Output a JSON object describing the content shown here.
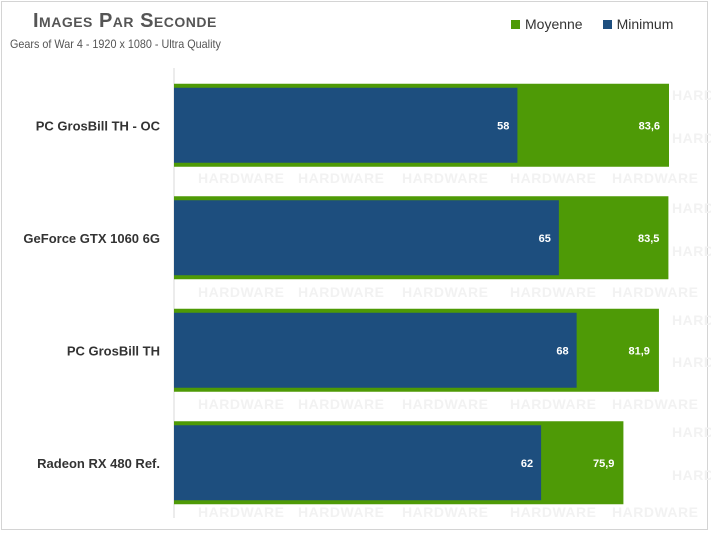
{
  "chart_data": {
    "type": "bar",
    "orientation": "horizontal",
    "title": "Images Par Seconde",
    "subtitle": "Gears of War 4 - 1920 x 1080 - Ultra Quality",
    "categories": [
      "PC GrosBill TH - OC",
      "GeForce GTX 1060 6G",
      "PC GrosBill TH",
      "Radeon RX 480 Ref."
    ],
    "series": [
      {
        "name": "Moyenne",
        "color": "#4e9a06",
        "values": [
          83.6,
          83.5,
          81.9,
          75.9
        ],
        "labels": [
          "83,6",
          "83,5",
          "81,9",
          "75,9"
        ]
      },
      {
        "name": "Minimum",
        "color": "#1d4e7e",
        "values": [
          58,
          65,
          68,
          62
        ],
        "labels": [
          "58",
          "65",
          "68",
          "62"
        ]
      }
    ],
    "xlim": [
      0,
      85
    ],
    "legend_position": "top-right",
    "grid": false,
    "watermark": "HARDWARE"
  }
}
